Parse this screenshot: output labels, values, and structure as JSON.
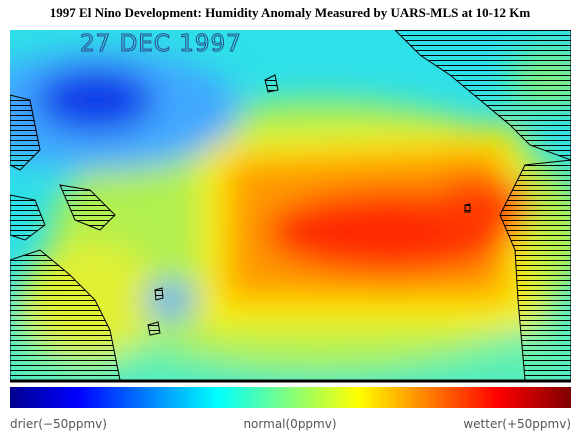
{
  "title": "1997 El Nino Development: Humidity Anomaly Measured by UARS-MLS at 10-12 Km",
  "map": {
    "date_label": "27 DEC 1997"
  },
  "colorbar": {
    "labels": [
      "drier(−50ppmv)",
      "normal(0ppmv)",
      "wetter(+50ppmv)"
    ]
  }
}
